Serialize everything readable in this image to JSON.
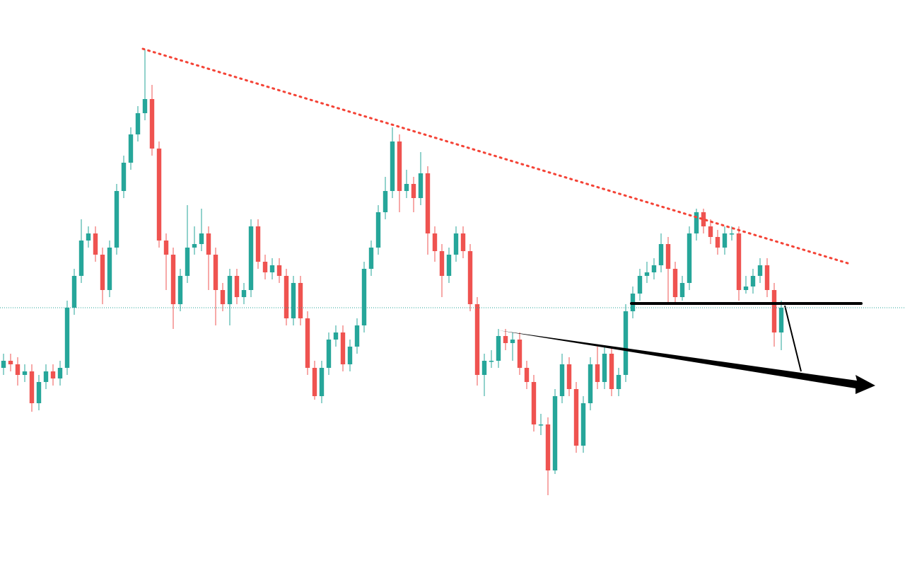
{
  "chart_data": {
    "type": "candlestick",
    "up_color": "#26a69a",
    "down_color": "#ef5350",
    "ylim": [
      0,
      810
    ],
    "open": [
      290,
      300,
      295,
      280,
      285,
      240,
      270,
      285,
      275,
      290,
      375,
      420,
      470,
      480,
      450,
      400,
      460,
      540,
      580,
      620,
      650,
      670,
      600,
      470,
      450,
      380,
      420,
      460,
      465,
      480,
      450,
      400,
      380,
      420,
      390,
      400,
      490,
      440,
      425,
      435,
      420,
      360,
      410,
      360,
      290,
      250,
      290,
      330,
      340,
      295,
      320,
      350,
      430,
      460,
      510,
      540,
      610,
      540,
      550,
      530,
      565,
      480,
      455,
      420,
      450,
      480,
      455,
      380,
      280,
      300,
      300,
      335,
      325,
      330,
      290,
      270,
      210,
      210,
      145,
      250,
      295,
      260,
      180,
      240,
      295,
      270,
      310,
      260,
      280,
      370,
      395,
      420,
      425,
      435,
      465,
      430,
      390,
      410,
      480,
      510,
      490,
      475,
      460,
      480,
      480,
      400,
      405,
      420,
      435,
      400,
      340
    ],
    "high": [
      310,
      310,
      305,
      295,
      295,
      280,
      295,
      295,
      300,
      385,
      430,
      500,
      490,
      490,
      460,
      470,
      550,
      590,
      630,
      660,
      740,
      690,
      610,
      480,
      460,
      430,
      520,
      490,
      515,
      490,
      460,
      410,
      430,
      430,
      410,
      500,
      500,
      450,
      445,
      445,
      430,
      420,
      420,
      370,
      300,
      300,
      340,
      350,
      350,
      330,
      360,
      440,
      470,
      520,
      560,
      630,
      620,
      570,
      560,
      595,
      575,
      490,
      465,
      460,
      490,
      490,
      465,
      390,
      310,
      315,
      345,
      345,
      340,
      340,
      300,
      280,
      225,
      220,
      260,
      310,
      305,
      270,
      250,
      305,
      320,
      320,
      320,
      290,
      380,
      405,
      430,
      440,
      445,
      480,
      475,
      440,
      420,
      490,
      515,
      515,
      500,
      485,
      490,
      490,
      490,
      420,
      430,
      445,
      445,
      410,
      385
    ],
    "low": [
      280,
      285,
      265,
      270,
      228,
      230,
      260,
      265,
      265,
      280,
      365,
      410,
      460,
      440,
      380,
      390,
      450,
      530,
      570,
      610,
      640,
      590,
      460,
      400,
      345,
      370,
      410,
      450,
      455,
      400,
      350,
      370,
      350,
      380,
      380,
      390,
      430,
      415,
      415,
      410,
      350,
      350,
      350,
      280,
      245,
      240,
      280,
      320,
      285,
      285,
      310,
      340,
      420,
      450,
      500,
      530,
      510,
      530,
      510,
      520,
      450,
      440,
      390,
      410,
      440,
      445,
      370,
      265,
      250,
      290,
      290,
      315,
      300,
      280,
      260,
      200,
      195,
      110,
      140,
      240,
      250,
      170,
      170,
      230,
      260,
      260,
      250,
      250,
      270,
      360,
      385,
      410,
      415,
      425,
      380,
      380,
      385,
      400,
      470,
      480,
      465,
      450,
      450,
      470,
      385,
      395,
      395,
      410,
      390,
      320,
      315
    ],
    "close": [
      300,
      295,
      280,
      285,
      240,
      270,
      285,
      275,
      290,
      375,
      420,
      470,
      480,
      450,
      400,
      460,
      540,
      580,
      620,
      650,
      670,
      600,
      470,
      450,
      380,
      420,
      460,
      465,
      480,
      450,
      400,
      380,
      420,
      390,
      400,
      490,
      440,
      425,
      435,
      420,
      360,
      410,
      360,
      290,
      250,
      290,
      330,
      340,
      295,
      320,
      350,
      430,
      460,
      510,
      540,
      610,
      540,
      550,
      530,
      565,
      480,
      455,
      420,
      450,
      480,
      455,
      380,
      280,
      300,
      300,
      335,
      325,
      330,
      290,
      270,
      210,
      210,
      145,
      250,
      295,
      260,
      180,
      240,
      295,
      270,
      310,
      260,
      280,
      370,
      395,
      420,
      425,
      435,
      465,
      430,
      390,
      410,
      480,
      510,
      490,
      475,
      460,
      480,
      480,
      400,
      405,
      420,
      435,
      400,
      340,
      375
    ]
  }
}
